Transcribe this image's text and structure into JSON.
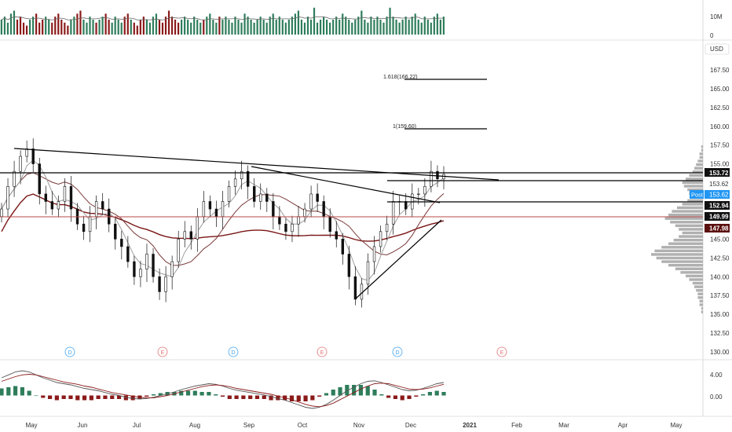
{
  "chart_data": {
    "type": "candlestick",
    "currency_label": "USD",
    "colors": {
      "up": "#2e7d5b",
      "down": "#8b1a1a",
      "ma_fast": "#9e9e9e",
      "ma_mid": "#7b3b3b",
      "ma_slow": "#7a1515",
      "line": "#000000",
      "post_bg": "#2196f3",
      "price_tag_dark": "#5b0f0f",
      "volume_up": "#2e7d5b",
      "volume_down": "#8b1a1a",
      "profile": "#b0b0b0",
      "earnings": "#e57373",
      "dividend": "#42a5f5",
      "hline_red": "#b84a4a"
    },
    "volume_axis": {
      "ticks": [
        "10M",
        "0"
      ]
    },
    "price_axis": {
      "ylim": [
        130,
        170
      ],
      "ticks": [
        "130.00",
        "132.50",
        "135.00",
        "137.50",
        "140.00",
        "142.50",
        "145.00",
        "147.50",
        "150.00",
        "152.50",
        "155.00",
        "157.50",
        "160.00",
        "162.50",
        "165.00",
        "167.50"
      ]
    },
    "macd_axis": {
      "ticks": [
        "4.00",
        "0.00"
      ]
    },
    "x_axis": {
      "labels": [
        "May",
        "Jun",
        "Jul",
        "Aug",
        "Sep",
        "Oct",
        "Nov",
        "Dec",
        "2021",
        "Feb",
        "Mar",
        "Apr",
        "May"
      ]
    },
    "price_tags": [
      {
        "label": "153.72",
        "value": 153.72,
        "style": "black"
      },
      {
        "label": "Post",
        "value": 153.62,
        "style": "post"
      },
      {
        "label": "153.62",
        "value": 153.62,
        "style": "blue"
      },
      {
        "label": "152.94",
        "value": 152.94,
        "style": "black"
      },
      {
        "label": "149.99",
        "value": 149.99,
        "style": "black"
      },
      {
        "label": "147.98",
        "value": 147.98,
        "style": "dark"
      }
    ],
    "fib_levels": [
      {
        "label": "1.618(166.22)",
        "value": 166.22
      },
      {
        "label": "1(159.60)",
        "value": 159.6
      }
    ],
    "events": [
      {
        "type": "dividend",
        "label": "D"
      },
      {
        "type": "earnings",
        "label": "E"
      },
      {
        "type": "dividend",
        "label": "D"
      },
      {
        "type": "earnings",
        "label": "E"
      },
      {
        "type": "dividend",
        "label": "D"
      },
      {
        "type": "earnings",
        "label": "E"
      }
    ],
    "horizontal_levels": [
      153.72,
      153.62,
      152.94,
      149.99
    ],
    "price_path_points": [
      [
        0,
        149
      ],
      [
        2,
        152
      ],
      [
        4,
        154
      ],
      [
        6,
        156
      ],
      [
        8,
        157
      ],
      [
        10,
        155
      ],
      [
        12,
        151
      ],
      [
        14,
        150
      ],
      [
        16,
        149
      ],
      [
        18,
        150
      ],
      [
        20,
        152
      ],
      [
        22,
        149
      ],
      [
        24,
        147
      ],
      [
        26,
        146
      ],
      [
        28,
        148
      ],
      [
        30,
        150
      ],
      [
        32,
        149
      ],
      [
        34,
        147
      ],
      [
        36,
        145
      ],
      [
        38,
        144
      ],
      [
        40,
        142
      ],
      [
        42,
        140
      ],
      [
        44,
        141
      ],
      [
        46,
        143
      ],
      [
        48,
        140
      ],
      [
        50,
        138
      ],
      [
        52,
        140
      ],
      [
        54,
        142
      ],
      [
        56,
        145
      ],
      [
        58,
        146
      ],
      [
        60,
        145
      ],
      [
        62,
        148
      ],
      [
        64,
        150
      ],
      [
        66,
        149
      ],
      [
        68,
        148
      ],
      [
        70,
        150
      ],
      [
        72,
        152
      ],
      [
        74,
        153
      ],
      [
        76,
        154
      ],
      [
        78,
        152
      ],
      [
        80,
        150
      ],
      [
        82,
        151
      ],
      [
        84,
        150
      ],
      [
        86,
        148
      ],
      [
        88,
        147
      ],
      [
        90,
        146
      ],
      [
        92,
        147
      ],
      [
        94,
        148
      ],
      [
        96,
        149
      ],
      [
        98,
        151
      ],
      [
        100,
        150
      ],
      [
        102,
        148
      ],
      [
        104,
        146
      ],
      [
        106,
        145
      ],
      [
        108,
        143
      ],
      [
        110,
        140
      ],
      [
        112,
        137
      ],
      [
        114,
        139
      ],
      [
        116,
        142
      ],
      [
        118,
        144
      ],
      [
        120,
        146
      ],
      [
        122,
        147
      ],
      [
        124,
        150
      ],
      [
        126,
        150
      ],
      [
        128,
        149
      ],
      [
        130,
        151
      ],
      [
        132,
        151
      ],
      [
        134,
        152
      ],
      [
        136,
        154
      ],
      [
        138,
        153
      ],
      [
        140,
        153.6
      ]
    ],
    "volume_values": [
      5,
      6,
      4,
      7,
      8,
      5,
      6,
      4,
      3,
      5,
      6,
      7,
      4,
      5,
      6,
      5,
      4,
      6,
      7,
      5,
      4,
      3,
      5,
      6,
      7,
      8,
      5,
      4,
      6,
      5,
      4,
      5,
      6,
      7,
      5,
      4,
      6,
      5,
      4,
      6,
      7,
      5,
      4,
      3,
      5,
      6,
      5,
      4,
      6,
      7,
      5,
      4,
      6,
      8,
      6,
      5,
      4,
      5,
      6,
      5,
      4,
      6,
      5,
      4,
      5,
      6,
      7,
      5,
      4,
      6,
      5,
      6,
      5,
      4,
      6,
      5,
      4,
      7,
      6,
      5,
      4,
      5,
      6,
      5,
      4,
      6,
      7,
      5,
      6,
      5,
      4,
      5,
      6,
      7,
      8,
      5,
      4,
      6,
      5,
      9,
      4,
      5,
      6,
      5,
      4,
      5,
      6,
      5,
      7,
      6,
      5,
      4,
      5,
      6,
      8,
      5,
      4,
      6,
      5,
      6,
      5,
      4,
      6,
      9,
      6,
      5,
      4,
      5,
      6,
      5,
      6,
      7,
      5,
      4,
      6,
      5,
      4,
      6,
      7,
      5,
      6
    ],
    "profile_values": [
      1,
      1,
      2,
      2,
      3,
      4,
      5,
      6,
      8,
      10,
      12,
      11,
      9,
      8,
      7,
      9,
      12,
      15,
      18,
      20,
      22,
      19,
      16,
      14,
      12,
      14,
      17,
      20,
      24,
      28,
      30,
      27,
      24,
      20,
      16,
      13,
      10,
      8,
      6,
      5,
      4,
      3,
      3,
      2,
      2,
      1,
      1
    ],
    "macd_line": [
      3,
      3.5,
      4,
      4.2,
      4,
      3.5,
      3,
      2.6,
      2.2,
      2,
      1.8,
      1.5,
      1.2,
      1,
      0.8,
      0.5,
      0.2,
      0,
      -0.3,
      -0.5,
      -0.6,
      -0.5,
      -0.3,
      0,
      0.3,
      0.6,
      1,
      1.3,
      1.6,
      1.8,
      2,
      1.9,
      1.6,
      1.2,
      0.9,
      0.7,
      0.5,
      0.3,
      0.1,
      -0.2,
      -0.5,
      -0.8,
      -1.2,
      -1.6,
      -2,
      -2.2,
      -2,
      -1.5,
      -0.8,
      0,
      0.8,
      1.4,
      2,
      2.4,
      2.5,
      2.2,
      1.8,
      1.4,
      1,
      0.8,
      0.9,
      1.2,
      1.6,
      2,
      2.2
    ],
    "macd_signal": [
      2.4,
      2.8,
      3.2,
      3.5,
      3.6,
      3.5,
      3.2,
      2.9,
      2.6,
      2.3,
      2.1,
      1.9,
      1.6,
      1.4,
      1.1,
      0.8,
      0.5,
      0.3,
      0.1,
      -0.1,
      -0.3,
      -0.4,
      -0.4,
      -0.2,
      0,
      0.3,
      0.6,
      0.9,
      1.2,
      1.5,
      1.7,
      1.8,
      1.7,
      1.5,
      1.2,
      1,
      0.8,
      0.6,
      0.4,
      0.2,
      -0.1,
      -0.4,
      -0.7,
      -1.1,
      -1.5,
      -1.8,
      -1.9,
      -1.7,
      -1.3,
      -0.7,
      -0.1,
      0.5,
      1.1,
      1.6,
      2,
      2.1,
      2,
      1.7,
      1.4,
      1.1,
      1,
      1.1,
      1.3,
      1.6,
      1.9
    ]
  }
}
